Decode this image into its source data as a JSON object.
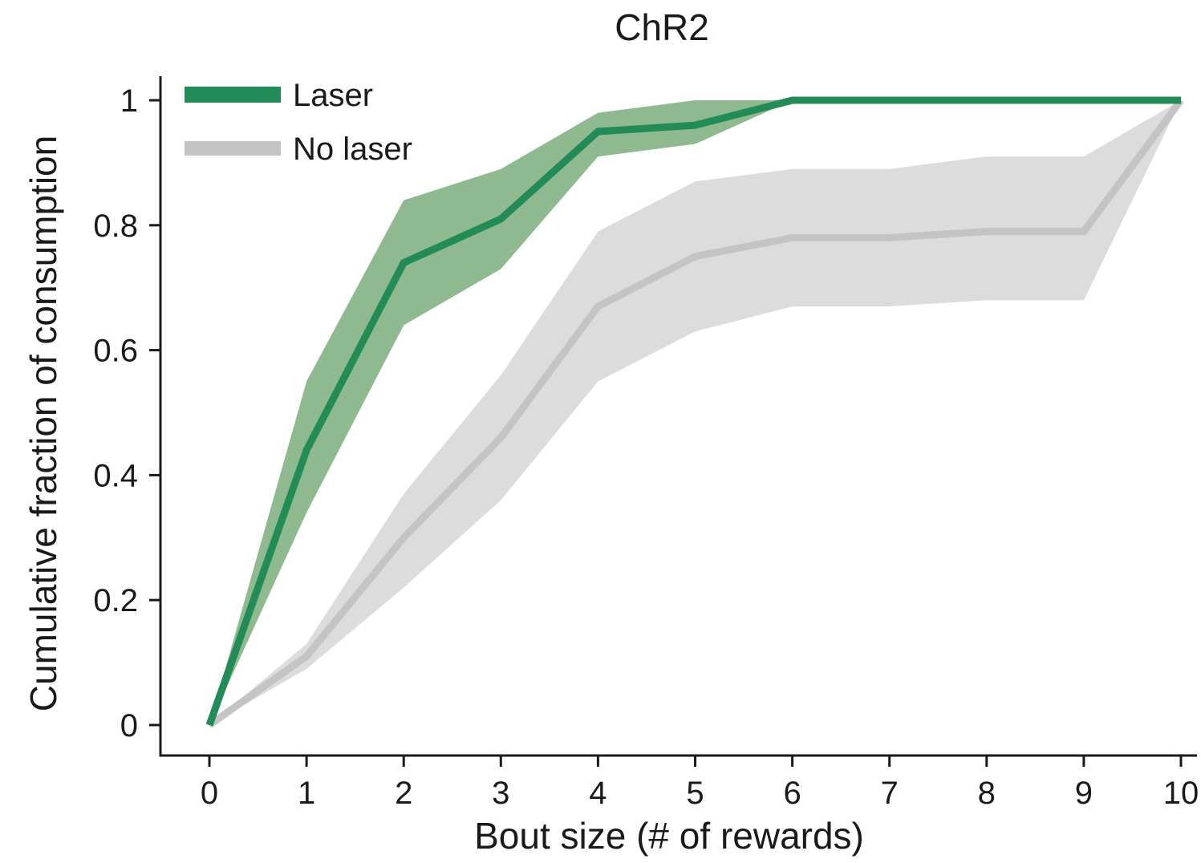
{
  "chart_data": {
    "type": "line",
    "title": "ChR2",
    "xlabel": "Bout size (# of rewards)",
    "ylabel": "Cumulative fraction of consumption",
    "x": [
      0,
      1,
      2,
      3,
      4,
      5,
      6,
      7,
      8,
      9,
      10
    ],
    "xlim": [
      0,
      10
    ],
    "ylim": [
      0,
      1
    ],
    "xticks": [
      0,
      1,
      2,
      3,
      4,
      5,
      6,
      7,
      8,
      9,
      10
    ],
    "xtick_labels": [
      "0",
      "1",
      "2",
      "3",
      "4",
      "5",
      "6",
      "7",
      "8",
      "9",
      "10"
    ],
    "yticks": [
      0,
      0.2,
      0.4,
      0.6,
      0.8,
      1
    ],
    "ytick_labels": [
      "0",
      "0.2",
      "0.4",
      "0.6",
      "0.8",
      "1"
    ],
    "grid": false,
    "legend_position": "top-left",
    "series": [
      {
        "name": "No laser",
        "color": "#c4c4c4",
        "band_color": "#dcdcdc",
        "values": [
          0,
          0.11,
          0.3,
          0.46,
          0.67,
          0.75,
          0.78,
          0.78,
          0.79,
          0.79,
          1.0
        ],
        "upper": [
          0,
          0.13,
          0.37,
          0.56,
          0.79,
          0.87,
          0.89,
          0.89,
          0.91,
          0.91,
          1.0
        ],
        "lower": [
          0,
          0.09,
          0.22,
          0.36,
          0.55,
          0.63,
          0.67,
          0.67,
          0.68,
          0.68,
          1.0
        ]
      },
      {
        "name": "Laser",
        "color": "#238b58",
        "band_color": "#8fb98f",
        "values": [
          0,
          0.44,
          0.74,
          0.81,
          0.95,
          0.96,
          1.0,
          1.0,
          1.0,
          1.0,
          1.0
        ],
        "upper": [
          0,
          0.55,
          0.84,
          0.89,
          0.98,
          1.0,
          1.0,
          1.0,
          1.0,
          1.0,
          1.0
        ],
        "lower": [
          0,
          0.34,
          0.64,
          0.73,
          0.91,
          0.93,
          1.0,
          1.0,
          1.0,
          1.0,
          1.0
        ]
      }
    ]
  }
}
